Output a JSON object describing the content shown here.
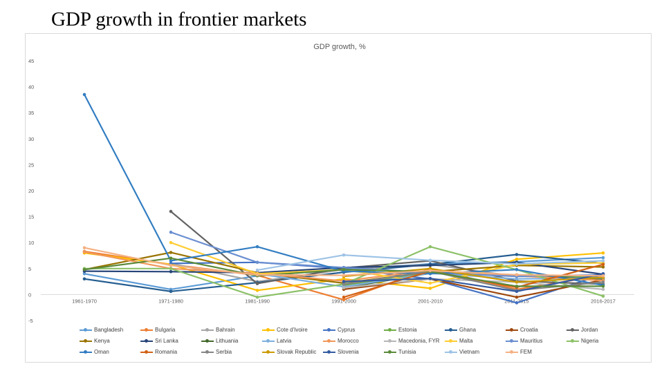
{
  "slide": {
    "title": "GDP growth in frontier markets"
  },
  "chart_data": {
    "type": "line",
    "title": "GDP growth, %",
    "xlabel": "",
    "ylabel": "",
    "ylim": [
      -5,
      45
    ],
    "yticks": [
      -5,
      0,
      5,
      10,
      15,
      20,
      25,
      30,
      35,
      40,
      45
    ],
    "categories": [
      "1961-1970",
      "1971-1980",
      "1981-1990",
      "1991-2000",
      "2001-2010",
      "2011-2015",
      "2016-2017"
    ],
    "grid": false,
    "legend_position": "bottom",
    "series": [
      {
        "name": "Bangladesh",
        "color": "#5b9bd5",
        "values": [
          4.0,
          1.0,
          3.6,
          4.8,
          5.9,
          6.3,
          7.1
        ]
      },
      {
        "name": "Bulgaria",
        "color": "#ed7d31",
        "values": [
          8.3,
          5.8,
          3.7,
          -1.0,
          5.0,
          1.0,
          3.7
        ]
      },
      {
        "name": "Bahrain",
        "color": "#a5a5a5",
        "values": [
          null,
          6.0,
          2.5,
          4.8,
          5.8,
          3.5,
          3.3
        ]
      },
      {
        "name": "Cote d'Ivoire",
        "color": "#ffc000",
        "values": [
          8.0,
          5.8,
          0.8,
          3.0,
          1.2,
          6.8,
          8.0
        ]
      },
      {
        "name": "Cyprus",
        "color": "#4472c4",
        "values": [
          null,
          6.0,
          6.2,
          5.0,
          3.0,
          -1.6,
          3.9
        ]
      },
      {
        "name": "Estonia",
        "color": "#70ad47",
        "values": [
          null,
          null,
          null,
          1.8,
          4.3,
          3.8,
          3.2
        ]
      },
      {
        "name": "Ghana",
        "color": "#255e91",
        "values": [
          3.0,
          0.6,
          2.3,
          4.3,
          5.8,
          7.7,
          6.0
        ]
      },
      {
        "name": "Croatia",
        "color": "#9e480e",
        "values": [
          null,
          null,
          null,
          1.0,
          3.0,
          -0.5,
          2.8
        ]
      },
      {
        "name": "Jordan",
        "color": "#636363",
        "values": [
          null,
          16.0,
          2.1,
          5.1,
          6.5,
          2.6,
          2.0
        ]
      },
      {
        "name": "Kenya",
        "color": "#997300",
        "values": [
          4.8,
          8.1,
          4.2,
          2.2,
          4.4,
          5.6,
          5.3
        ]
      },
      {
        "name": "Sri Lanka",
        "color": "#264478",
        "values": [
          4.5,
          4.4,
          4.2,
          5.2,
          5.6,
          6.2,
          3.9
        ]
      },
      {
        "name": "Lithuania",
        "color": "#43682b",
        "values": [
          null,
          null,
          null,
          1.3,
          4.1,
          3.7,
          3.0
        ]
      },
      {
        "name": "Latvia",
        "color": "#7cafdd",
        "values": [
          null,
          null,
          4.0,
          1.5,
          4.1,
          3.0,
          3.2
        ]
      },
      {
        "name": "Morocco",
        "color": "#f1975a",
        "values": [
          8.2,
          5.0,
          4.1,
          2.6,
          4.7,
          3.6,
          2.7
        ]
      },
      {
        "name": "Macedonia, FYR",
        "color": "#b7b7b7",
        "values": [
          null,
          null,
          null,
          1.3,
          3.0,
          2.4,
          1.0
        ]
      },
      {
        "name": "Malta",
        "color": "#ffcd33",
        "values": [
          null,
          10.0,
          4.0,
          4.8,
          2.2,
          5.8,
          6.1
        ]
      },
      {
        "name": "Mauritius",
        "color": "#698ed0",
        "values": [
          null,
          12.0,
          6.2,
          5.2,
          4.2,
          3.5,
          3.8
        ]
      },
      {
        "name": "Nigeria",
        "color": "#8cc168",
        "values": [
          5.0,
          5.0,
          -0.5,
          2.0,
          9.2,
          4.8,
          -0.3
        ]
      },
      {
        "name": "Oman",
        "color": "#327dc2",
        "values": [
          38.5,
          6.5,
          9.2,
          4.5,
          4.0,
          4.8,
          1.8
        ]
      },
      {
        "name": "Romania",
        "color": "#d26012",
        "values": [
          null,
          null,
          null,
          -0.5,
          4.5,
          1.4,
          5.8
        ]
      },
      {
        "name": "Serbia",
        "color": "#848484",
        "values": [
          null,
          null,
          null,
          2.0,
          4.5,
          0.8,
          2.4
        ]
      },
      {
        "name": "Slovak Republic",
        "color": "#cc9a00",
        "values": [
          null,
          null,
          null,
          3.5,
          5.0,
          2.4,
          3.3
        ]
      },
      {
        "name": "Slovenia",
        "color": "#335aa1",
        "values": [
          null,
          null,
          null,
          2.5,
          3.1,
          0.6,
          4.0
        ]
      },
      {
        "name": "Tunisia",
        "color": "#5a8a39",
        "values": [
          4.8,
          7.0,
          3.6,
          4.8,
          4.4,
          1.6,
          1.6
        ]
      },
      {
        "name": "Vietnam",
        "color": "#9dc3e6",
        "values": [
          null,
          null,
          4.7,
          7.6,
          6.6,
          5.9,
          6.5
        ]
      },
      {
        "name": "FEM",
        "color": "#f4b183",
        "values": [
          9.0,
          5.6,
          3.8,
          3.7,
          4.6,
          3.8,
          3.6
        ]
      }
    ]
  }
}
